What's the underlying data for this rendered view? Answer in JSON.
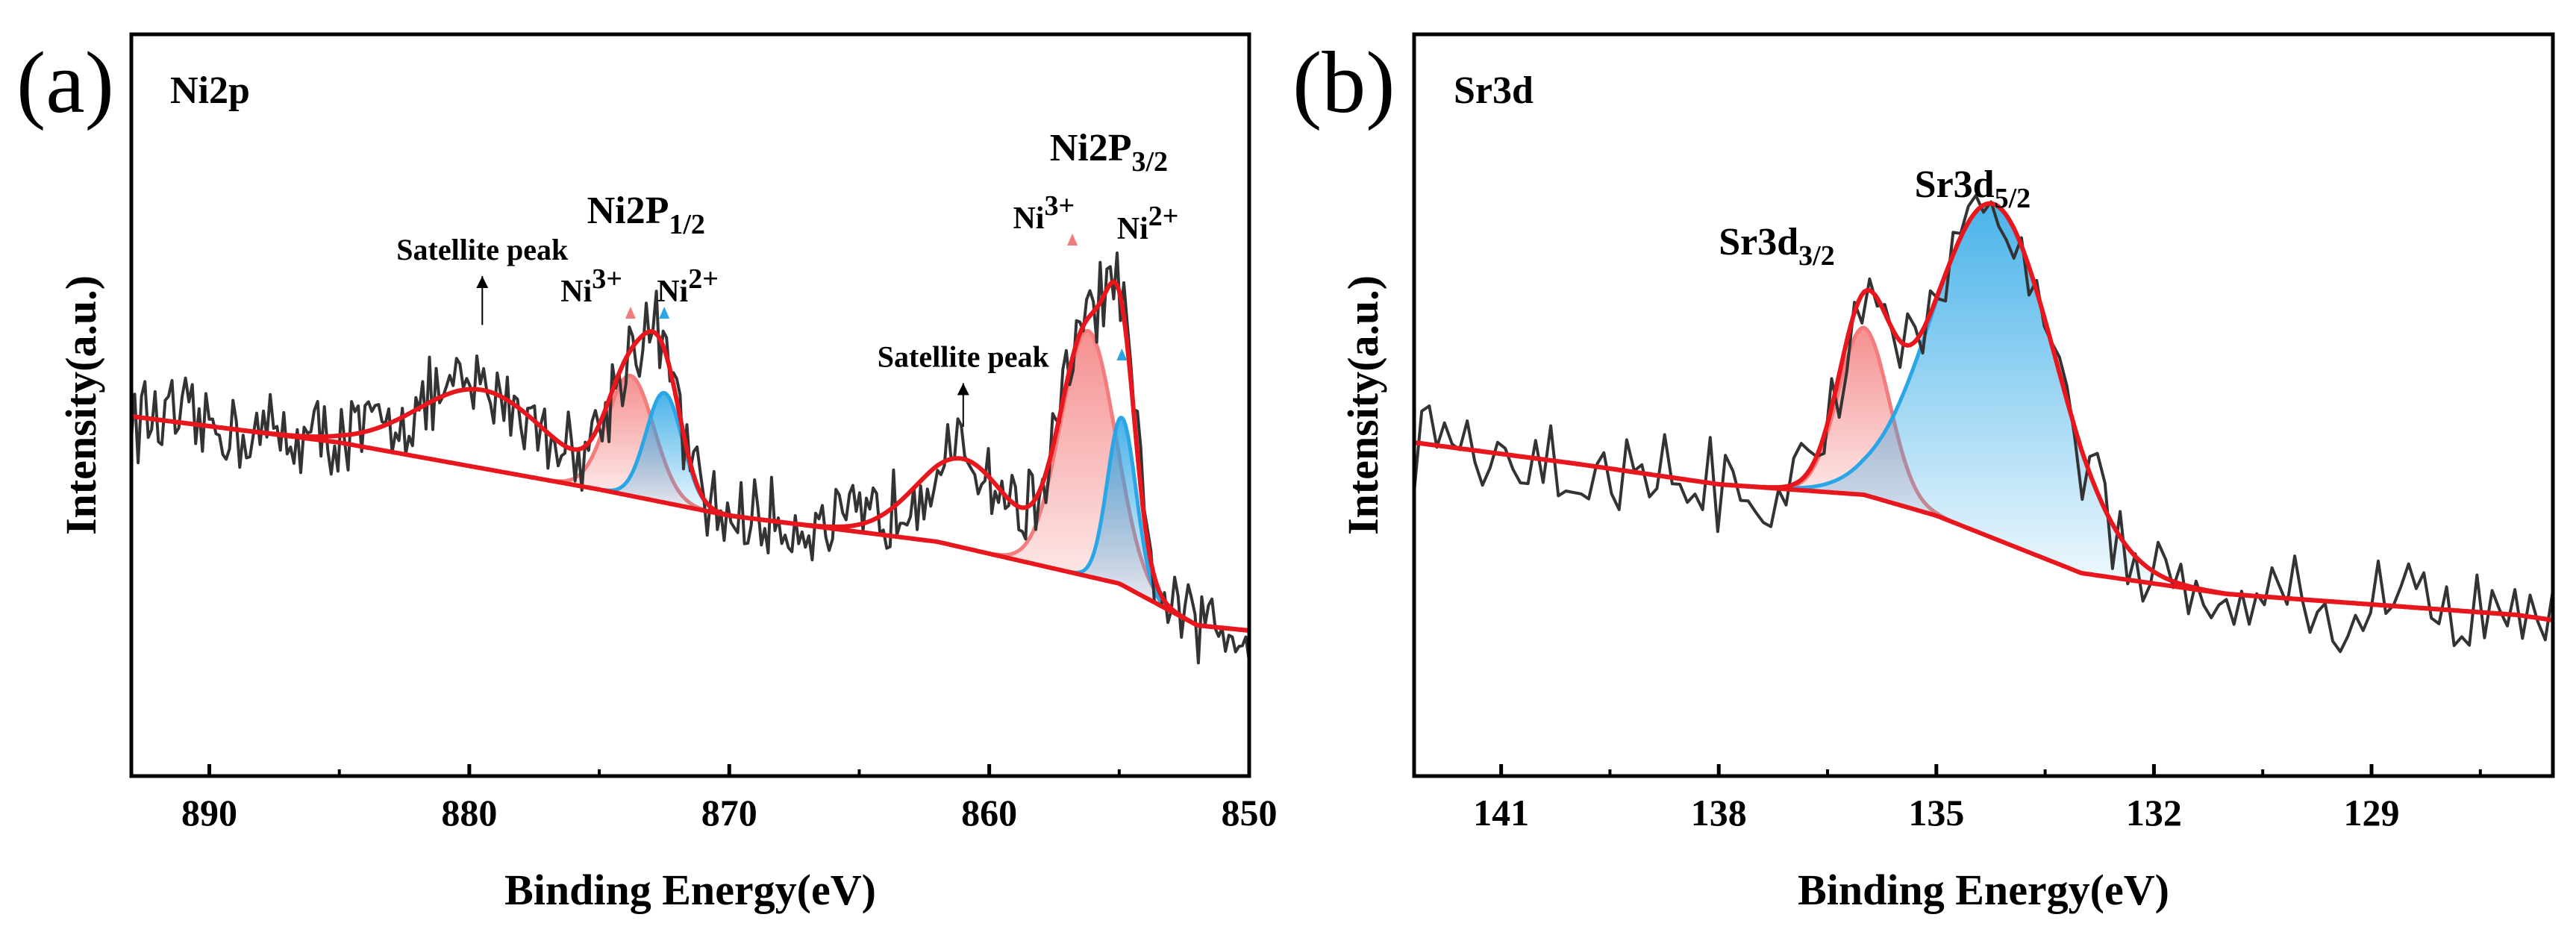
{
  "chart_data": [
    {
      "type": "line",
      "panel_label": "(a)",
      "title": "Ni2p",
      "xlabel": "Binding Energy(eV)",
      "ylabel": "Intensity(a.u.)",
      "xlim": [
        893,
        850
      ],
      "x_reversed": true,
      "ylim": [
        0,
        1
      ],
      "xticks": [
        890,
        880,
        870,
        860,
        850
      ],
      "tick_labels": [
        "890",
        "880",
        "870",
        "860",
        "850"
      ],
      "colors": {
        "raw": "#333333",
        "envelope": "#e8161d",
        "background": "#e8161d",
        "ni3": "#f47c7c",
        "ni2": "#2aa6e6"
      },
      "background": {
        "x": [
          893,
          885,
          875,
          870,
          862,
          855,
          852,
          850
        ],
        "y": [
          0.56,
          0.51,
          0.42,
          0.37,
          0.32,
          0.24,
          0.16,
          0.15
        ]
      },
      "components": [
        {
          "name": "Ni3+ (Ni2P1/2)",
          "color": "#f47c7c",
          "center": 873.8,
          "amp": 0.23,
          "sigma": 0.9
        },
        {
          "name": "Ni2+ (Ni2P1/2)",
          "color": "#2aa6e6",
          "center": 872.5,
          "amp": 0.21,
          "sigma": 0.7
        },
        {
          "name": "Ni3+ (Ni2P3/2)",
          "color": "#f47c7c",
          "center": 856.2,
          "amp": 0.47,
          "sigma": 1.05
        },
        {
          "name": "Ni2+ (Ni2P3/2)",
          "color": "#2aa6e6",
          "center": 854.9,
          "amp": 0.32,
          "sigma": 0.55
        },
        {
          "name": "Satellite peak",
          "color": "#e8161d",
          "center": 879.5,
          "amp": 0.15,
          "sigma": 2.5,
          "envelope_only": true
        },
        {
          "name": "Satellite peak",
          "color": "#e8161d",
          "center": 861.0,
          "amp": 0.17,
          "sigma": 1.8,
          "envelope_only": true
        }
      ],
      "noise_amp": 0.07,
      "annotations": [
        {
          "text": "Satellite peak",
          "x": 879.5,
          "y": 0.86,
          "arrow_to": 0.735
        },
        {
          "text": "Satellite peak",
          "x": 861.0,
          "y": 0.655,
          "arrow_to": 0.54
        }
      ],
      "peak_labels": [
        {
          "base": "Ni2P",
          "sub": "1/2",
          "x": 873.2,
          "y": 0.93
        },
        {
          "base": "Ni2P",
          "sub": "3/2",
          "x": 855.4,
          "y": 1.05
        }
      ],
      "ion_labels": [
        {
          "base": "Ni",
          "sup": "3+",
          "x": 875.3,
          "y": 0.78,
          "marker_x": 873.8,
          "marker_color": "#f47c7c",
          "marker_y": 0.77
        },
        {
          "base": "Ni",
          "sup": "2+",
          "x": 871.6,
          "y": 0.78,
          "marker_x": 872.5,
          "marker_color": "#2aa6e6",
          "marker_y": 0.77
        },
        {
          "base": "Ni",
          "sup": "3+",
          "x": 857.9,
          "y": 0.92,
          "marker_x": 856.8,
          "marker_color": "#f47c7c",
          "marker_y": 0.91
        },
        {
          "base": "Ni",
          "sup": "2+",
          "x": 853.9,
          "y": 0.9,
          "marker_x": 854.9,
          "marker_color": "#2aa6e6",
          "marker_y": 0.69
        }
      ]
    },
    {
      "type": "line",
      "panel_label": "(b)",
      "title": "Sr3d",
      "xlabel": "Binding Energy(eV)",
      "ylabel": "Intensity(a.u.)",
      "xlim": [
        142.2,
        126.5
      ],
      "x_reversed": true,
      "ylim": [
        0,
        1
      ],
      "xticks": [
        141,
        138,
        135,
        132,
        129
      ],
      "tick_labels": [
        "141",
        "138",
        "135",
        "132",
        "129"
      ],
      "colors": {
        "raw": "#333333",
        "envelope": "#e8161d",
        "background": "#e8161d",
        "sr32": "#f47c7c",
        "sr52": "#2aa6e6"
      },
      "background": {
        "x": [
          142.2,
          140,
          138,
          136,
          135,
          133,
          131,
          129,
          127,
          126.5
        ],
        "y": [
          0.51,
          0.47,
          0.43,
          0.41,
          0.37,
          0.26,
          0.22,
          0.2,
          0.18,
          0.17
        ]
      },
      "components": [
        {
          "name": "Sr3d3/2",
          "color": "#f47c7c",
          "center": 136.0,
          "amp": 0.32,
          "sigma": 0.35
        },
        {
          "name": "Sr3d5/2",
          "color": "#2aa6e6",
          "center": 134.2,
          "amp": 0.64,
          "sigma": 0.85
        }
      ],
      "noise_amp": 0.08,
      "peak_labels": [
        {
          "base": "Sr3d",
          "sub": "3/2",
          "x": 137.2,
          "y": 0.87
        },
        {
          "base": "Sr3d",
          "sub": "5/2",
          "x": 134.5,
          "y": 0.98
        }
      ]
    }
  ]
}
